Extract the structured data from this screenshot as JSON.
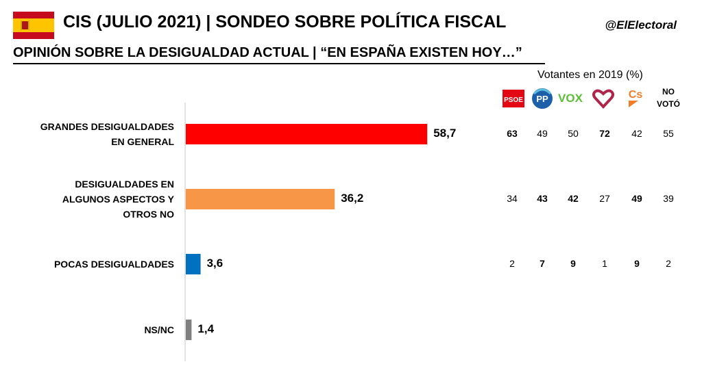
{
  "header": {
    "title": "CIS (JULIO 2021) | SONDEO SOBRE POLÍTICA FISCAL",
    "handle": "@ElElectoral",
    "subtitle": "OPINIÓN SOBRE LA DESIGUALDAD ACTUAL | “EN ESPAÑA EXISTEN HOY…”",
    "flag_icon": "spain-flag-icon"
  },
  "voters_caption": "Votantes en 2019 (%)",
  "parties": [
    {
      "name": "PSOE",
      "logo_text": "PSOE",
      "color": "#e30613"
    },
    {
      "name": "PP",
      "logo_text": "PP",
      "color": "#1d5fa8"
    },
    {
      "name": "VOX",
      "logo_text": "VOX",
      "color": "#5bc035"
    },
    {
      "name": "Unidas Podemos",
      "logo_text": "",
      "color": "#b0234a"
    },
    {
      "name": "Cs",
      "logo_text": "Cs",
      "color": "#f07d28"
    },
    {
      "name": "NO VOTÓ",
      "logo_text": "NO VOTÓ",
      "color": "#000000"
    }
  ],
  "no_voto_line1": "NO",
  "no_voto_line2": "VOTÓ",
  "chart_data": {
    "type": "bar",
    "orientation": "horizontal",
    "categories": [
      [
        "GRANDES DESIGUALDADES",
        "EN GENERAL"
      ],
      [
        "DESIGUALDADES EN",
        "ALGUNOS ASPECTOS Y",
        "OTROS NO"
      ],
      [
        "POCAS DESIGUALDADES"
      ],
      [
        "NS/NC"
      ]
    ],
    "values": [
      58.7,
      36.2,
      3.6,
      1.4
    ],
    "value_labels": [
      "58,7",
      "36,2",
      "3,6",
      "1,4"
    ],
    "colors": [
      "#ff0000",
      "#f79646",
      "#0070c0",
      "#7f7f7f"
    ],
    "xlim": [
      0,
      100
    ],
    "grid": false,
    "table": {
      "columns": [
        "PSOE",
        "PP",
        "VOX",
        "Unidas Podemos",
        "Cs",
        "NO VOTÓ"
      ],
      "rows": [
        [
          {
            "v": "63",
            "bold": true
          },
          {
            "v": "49",
            "bold": false
          },
          {
            "v": "50",
            "bold": false
          },
          {
            "v": "72",
            "bold": true
          },
          {
            "v": "42",
            "bold": false
          },
          {
            "v": "55",
            "bold": false
          }
        ],
        [
          {
            "v": "34",
            "bold": false
          },
          {
            "v": "43",
            "bold": true
          },
          {
            "v": "42",
            "bold": true
          },
          {
            "v": "27",
            "bold": false
          },
          {
            "v": "49",
            "bold": true
          },
          {
            "v": "39",
            "bold": false
          }
        ],
        [
          {
            "v": "2",
            "bold": false
          },
          {
            "v": "7",
            "bold": true
          },
          {
            "v": "9",
            "bold": true
          },
          {
            "v": "1",
            "bold": false
          },
          {
            "v": "9",
            "bold": true
          },
          {
            "v": "2",
            "bold": false
          }
        ],
        [
          {
            "v": "",
            "bold": false
          },
          {
            "v": "",
            "bold": false
          },
          {
            "v": "",
            "bold": false
          },
          {
            "v": "",
            "bold": false
          },
          {
            "v": "",
            "bold": false
          },
          {
            "v": "",
            "bold": false
          }
        ]
      ]
    }
  }
}
